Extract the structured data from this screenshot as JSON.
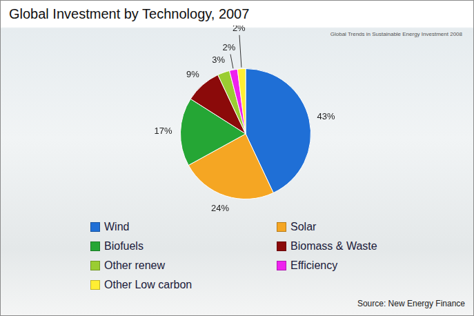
{
  "chart_data": {
    "type": "pie",
    "title": "Global Investment by Technology, 2007",
    "categories": [
      "Wind",
      "Solar",
      "Biofuels",
      "Biomass & Waste",
      "Other renew",
      "Efficiency",
      "Other Low carbon"
    ],
    "values": [
      43,
      24,
      17,
      9,
      3,
      2,
      2
    ],
    "value_labels": [
      "43%",
      "24%",
      "17%",
      "9%",
      "3%",
      "2%",
      "2%"
    ],
    "colors": [
      "#1f6fd6",
      "#f5a623",
      "#25a635",
      "#8b0a0a",
      "#9acd32",
      "#ee22ee",
      "#ffee33"
    ],
    "data_labels": true,
    "legend": "bottom",
    "annotations": [
      "Global Trends in Sustainable Energy Investment 2008",
      "Source: New Energy Finance"
    ]
  }
}
